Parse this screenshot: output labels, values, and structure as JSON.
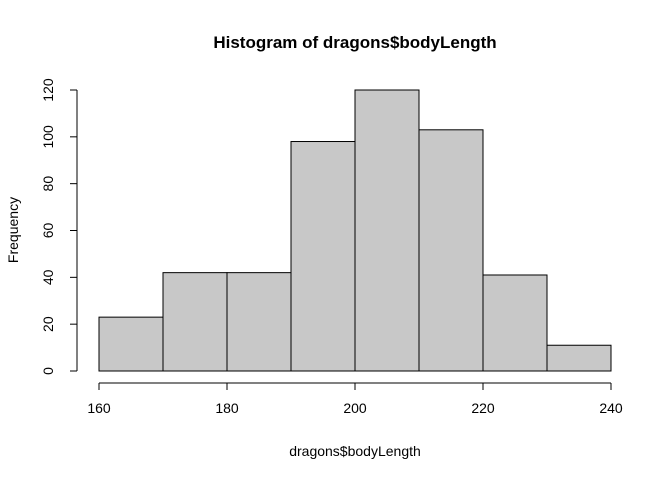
{
  "chart_data": {
    "type": "bar",
    "title": "Histogram of dragons$bodyLength",
    "xlabel": "dragons$bodyLength",
    "ylabel": "Frequency",
    "bins": [
      {
        "start": 160,
        "end": 170,
        "count": 23
      },
      {
        "start": 170,
        "end": 180,
        "count": 42
      },
      {
        "start": 180,
        "end": 190,
        "count": 42
      },
      {
        "start": 190,
        "end": 200,
        "count": 98
      },
      {
        "start": 200,
        "end": 210,
        "count": 120
      },
      {
        "start": 210,
        "end": 220,
        "count": 103
      },
      {
        "start": 220,
        "end": 230,
        "count": 41
      },
      {
        "start": 230,
        "end": 240,
        "count": 11
      }
    ],
    "xlim": [
      160,
      240
    ],
    "ylim": [
      0,
      120
    ],
    "x_ticks": [
      "160",
      "180",
      "200",
      "220",
      "240"
    ],
    "y_ticks": [
      "0",
      "20",
      "40",
      "60",
      "80",
      "100",
      "120"
    ],
    "bar_color": "#c8c8c8",
    "edge_color": "#000000",
    "grid": false,
    "legend": "none"
  }
}
